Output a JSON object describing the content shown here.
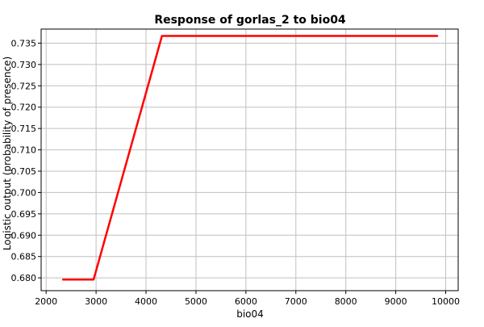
{
  "chart_data": {
    "type": "line",
    "title": "Response of gorlas_2 to bio04",
    "xlabel": "bio04",
    "ylabel": "Logistic output (probability of presence)",
    "xlim": [
      1900,
      10250
    ],
    "ylim": [
      0.677,
      0.7383
    ],
    "xticks": [
      2000,
      3000,
      4000,
      5000,
      6000,
      7000,
      8000,
      9000,
      10000
    ],
    "yticks": [
      0.68,
      0.685,
      0.69,
      0.695,
      0.7,
      0.705,
      0.71,
      0.715,
      0.72,
      0.725,
      0.73,
      0.735
    ],
    "grid": true,
    "series": [
      {
        "color": "#ff0000",
        "x": [
          2340,
          2950,
          4320,
          9830
        ],
        "y": [
          0.6796,
          0.6796,
          0.7367,
          0.7367
        ]
      }
    ]
  }
}
